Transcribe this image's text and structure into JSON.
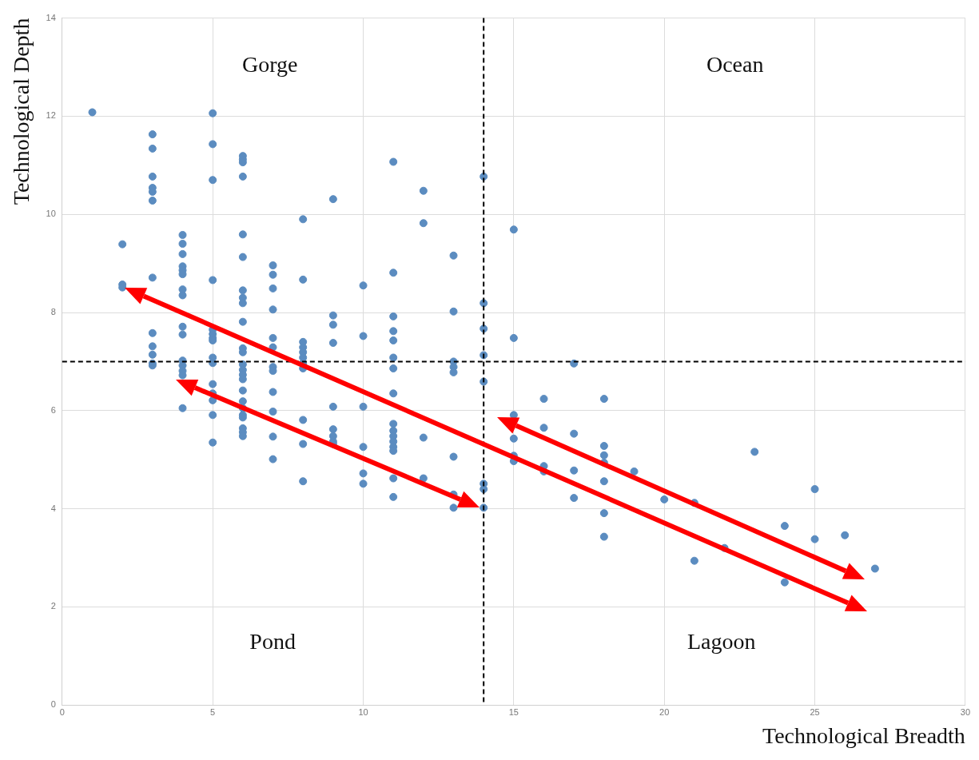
{
  "chart_data": {
    "type": "scatter",
    "xlabel": "Technological Breadth",
    "ylabel": "Technological Depth",
    "x": [
      1,
      2,
      2,
      2,
      3,
      3,
      3,
      3,
      3,
      3,
      3,
      3,
      3,
      3,
      3,
      3,
      4,
      4,
      4,
      4,
      4,
      4,
      4,
      4,
      4,
      4,
      4,
      4,
      4,
      4,
      4,
      5,
      5,
      5,
      5,
      5,
      5,
      5,
      5,
      5,
      5,
      5,
      5,
      5,
      5,
      5,
      6,
      6,
      6,
      6,
      6,
      6,
      6,
      6,
      6,
      6,
      6,
      6,
      6,
      6,
      6,
      6,
      6,
      6,
      6,
      6,
      6,
      6,
      6,
      6,
      7,
      7,
      7,
      7,
      7,
      7,
      7,
      7,
      7,
      7,
      7,
      7,
      8,
      8,
      8,
      8,
      8,
      8,
      8,
      8,
      8,
      8,
      8,
      9,
      9,
      9,
      9,
      9,
      9,
      9,
      9,
      9,
      10,
      10,
      10,
      10,
      10,
      10,
      11,
      11,
      11,
      11,
      11,
      11,
      11,
      11,
      11,
      11,
      11,
      11,
      11,
      11,
      11,
      11,
      12,
      12,
      12,
      12,
      13,
      13,
      13,
      13,
      13,
      13,
      13,
      13,
      14,
      14,
      14,
      14,
      14,
      14,
      14,
      14,
      15,
      15,
      15,
      15,
      15,
      15,
      16,
      16,
      16,
      16,
      17,
      17,
      17,
      17,
      18,
      18,
      18,
      18,
      18,
      18,
      18,
      19,
      20,
      21,
      21,
      22,
      23,
      24,
      24,
      25,
      25,
      26,
      27
    ],
    "values": [
      12.08,
      9.39,
      8.57,
      8.51,
      11.63,
      11.34,
      10.77,
      10.54,
      10.46,
      10.28,
      8.71,
      7.58,
      7.31,
      7.14,
      6.96,
      6.92,
      9.58,
      9.4,
      9.19,
      8.94,
      8.86,
      8.78,
      8.47,
      8.35,
      7.71,
      7.55,
      7.02,
      6.92,
      6.81,
      6.72,
      6.05,
      12.06,
      11.43,
      10.7,
      8.66,
      7.65,
      7.56,
      7.48,
      7.43,
      7.08,
      6.97,
      6.54,
      6.35,
      6.21,
      5.91,
      5.35,
      11.19,
      11.12,
      11.06,
      10.77,
      9.59,
      9.13,
      8.45,
      8.3,
      8.19,
      7.81,
      7.27,
      7.19,
      6.94,
      6.83,
      6.73,
      6.64,
      6.41,
      6.19,
      6.05,
      5.91,
      5.86,
      5.64,
      5.56,
      5.48,
      8.96,
      8.77,
      8.49,
      8.06,
      7.48,
      7.29,
      6.89,
      6.81,
      6.38,
      5.98,
      5.47,
      5.01,
      9.9,
      8.67,
      7.4,
      7.29,
      7.19,
      7.08,
      6.97,
      6.86,
      5.81,
      5.32,
      4.56,
      10.31,
      7.94,
      7.75,
      7.38,
      6.08,
      5.62,
      5.48,
      5.37,
      5.32,
      8.55,
      7.52,
      6.08,
      5.26,
      4.72,
      4.51,
      11.07,
      8.81,
      7.92,
      7.62,
      7.43,
      7.08,
      6.86,
      6.35,
      5.73,
      5.59,
      5.48,
      5.37,
      5.26,
      5.18,
      4.62,
      4.24,
      10.48,
      9.82,
      5.45,
      4.62,
      9.16,
      8.02,
      7,
      6.89,
      6.78,
      5.06,
      4.29,
      4.02,
      10.77,
      8.19,
      7.67,
      7.13,
      6.59,
      4.51,
      4.4,
      4.02,
      9.69,
      7.48,
      5.91,
      5.43,
      5.08,
      4.97,
      6.24,
      5.65,
      4.87,
      4.76,
      6.96,
      5.53,
      4.78,
      4.22,
      6.24,
      5.28,
      5.09,
      4.94,
      4.56,
      3.91,
      3.43,
      4.76,
      4.19,
      4.12,
      2.94,
      3.2,
      5.16,
      3.65,
      2.5,
      4.4,
      3.38,
      3.46,
      2.78
    ],
    "color": "#5b8cc0",
    "marker": "circle",
    "xlim": [
      0,
      30
    ],
    "xticks": [
      0,
      5,
      10,
      15,
      20,
      25,
      30
    ],
    "ylim": [
      0,
      14
    ],
    "yticks": [
      0,
      2,
      4,
      6,
      8,
      10,
      12,
      14
    ],
    "grid": true,
    "ref_lines": [
      {
        "axis": "x",
        "value": 14,
        "color": "#000000",
        "line_style": "dashed"
      },
      {
        "axis": "y",
        "value": 7,
        "color": "#000000",
        "line_style": "dashed"
      }
    ],
    "annotations": [
      "Gorge",
      "Ocean",
      "Pond",
      "Lagoon"
    ]
  }
}
